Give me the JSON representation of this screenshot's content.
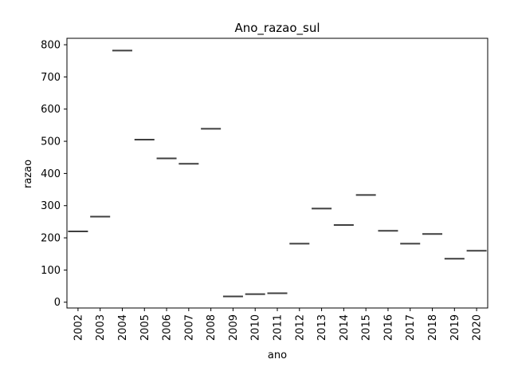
{
  "chart_data": {
    "type": "box",
    "title": "Ano_razao_sul",
    "xlabel": "ano",
    "ylabel": "razao",
    "categories": [
      "2002",
      "2003",
      "2004",
      "2005",
      "2006",
      "2007",
      "2008",
      "2009",
      "2010",
      "2011",
      "2012",
      "2013",
      "2014",
      "2015",
      "2016",
      "2017",
      "2018",
      "2019",
      "2020"
    ],
    "values": [
      220,
      266,
      782,
      505,
      447,
      430,
      539,
      18,
      25,
      28,
      182,
      291,
      240,
      333,
      222,
      182,
      212,
      135,
      160
    ],
    "ylim": [
      -18,
      820
    ],
    "yticks": [
      0,
      100,
      200,
      300,
      400,
      500,
      600,
      700,
      800
    ],
    "grid": false,
    "line_color": "#3f3f3f"
  }
}
